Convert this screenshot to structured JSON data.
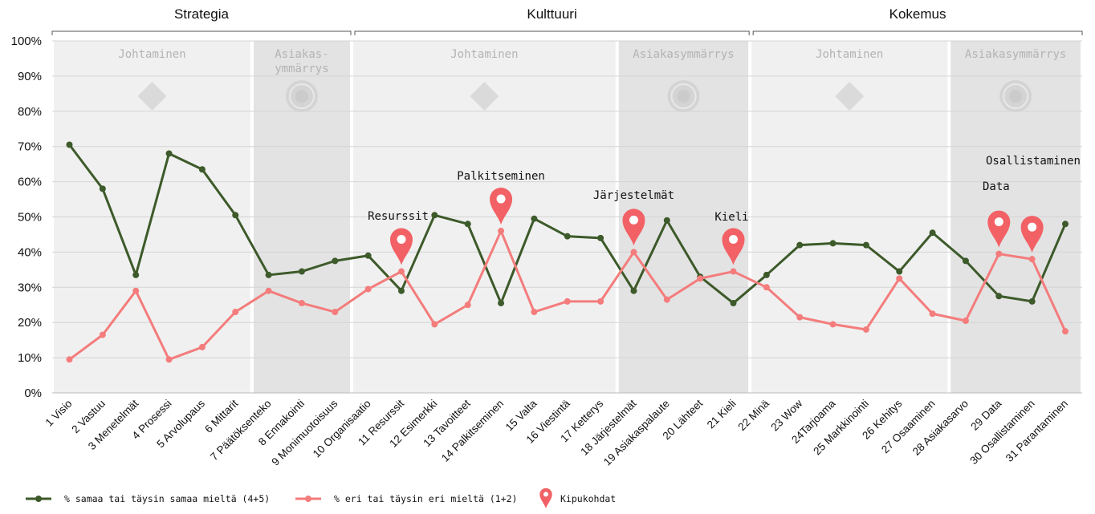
{
  "chart_data": {
    "type": "line",
    "categories": [
      "1 Visio",
      "2 Vastuu",
      "3 Menetelmät",
      "4 Prosessi",
      "5 Arvolupaus",
      "6 Mittarit",
      "7 Päätöksenteko",
      "8 Ennakointi",
      "9 Monimuotoisuus",
      "10 Organisaatio",
      "11 Resurssit",
      "12 Esimerkki",
      "13 Tavoitteet",
      "14 Palkitseminen",
      "15 Valta",
      "16 Viestintä",
      "17 Ketterys",
      "18 Järjestelmät",
      "19 Asiakaspalaute",
      "20 Lähteet",
      "21 Kieli",
      "22 Minä",
      "23 Wow",
      "24Tarjoama",
      "25 Markkinointi",
      "26 Kehitys",
      "27 Osaaminen",
      "28 Asiakasarvo",
      "29 Data",
      "30 Osallistaminen",
      "31 Parantaminen"
    ],
    "series": [
      {
        "name": "% samaa tai täysin samaa mieltä (4+5)",
        "color": "#3d5a2a",
        "values": [
          70.5,
          58,
          33.5,
          68,
          63.5,
          50.5,
          33.5,
          34.5,
          37.5,
          39,
          29,
          50.5,
          48,
          25.5,
          49.5,
          44.5,
          44,
          29,
          49,
          33,
          25.5,
          33.5,
          42,
          42.5,
          42,
          34.5,
          45.5,
          37.5,
          27.5,
          26,
          48
        ]
      },
      {
        "name": "% eri tai täysin eri mieltä (1+2)",
        "color": "#f47c7c",
        "values": [
          9.5,
          16.5,
          29,
          9.5,
          13,
          23,
          29,
          25.5,
          23,
          29.5,
          34.5,
          19.5,
          25,
          46,
          23,
          26,
          26,
          40,
          26.5,
          32.5,
          34.5,
          30,
          21.5,
          19.5,
          18,
          32.5,
          22.5,
          20.5,
          39.5,
          38,
          17.5
        ]
      }
    ],
    "ylim": [
      0,
      100
    ],
    "yticks": [
      "0%",
      "10%",
      "20%",
      "30%",
      "40%",
      "50%",
      "60%",
      "70%",
      "80%",
      "90%",
      "100%"
    ],
    "groups": [
      {
        "label": "Strategia",
        "start": 0,
        "end": 8
      },
      {
        "label": "Kulttuuri",
        "start": 9,
        "end": 20
      },
      {
        "label": "Kokemus",
        "start": 21,
        "end": 30
      }
    ],
    "sections": [
      {
        "label": "Johtaminen",
        "start": 0,
        "end": 5,
        "shade": "light",
        "icon": "diamond-icon"
      },
      {
        "label": "Asiakas-\nymmärrys",
        "start": 6,
        "end": 8,
        "shade": "dark",
        "icon": "target-icon"
      },
      {
        "label": "Johtaminen",
        "start": 9,
        "end": 16,
        "shade": "light",
        "icon": "diamond-icon"
      },
      {
        "label": "Asiakasymmärrys",
        "start": 17,
        "end": 20,
        "shade": "dark",
        "icon": "target-icon"
      },
      {
        "label": "Johtaminen",
        "start": 21,
        "end": 26,
        "shade": "light",
        "icon": "diamond-icon"
      },
      {
        "label": "Asiakasymmärrys",
        "start": 27,
        "end": 30,
        "shade": "dark",
        "icon": "target-icon"
      }
    ],
    "pain_points": [
      {
        "index": 10,
        "label": "Resurssit"
      },
      {
        "index": 13,
        "label": "Palkitseminen"
      },
      {
        "index": 17,
        "label": "Järjestelmät"
      },
      {
        "index": 20,
        "label": "Kieli"
      },
      {
        "index": 28,
        "label": "Data"
      },
      {
        "index": 29,
        "label": "Osallistaminen"
      }
    ],
    "legend": {
      "placement": "bottom-left",
      "pain_label": "Kipukohdat",
      "pin_color": "#f26165"
    },
    "grid": true
  }
}
